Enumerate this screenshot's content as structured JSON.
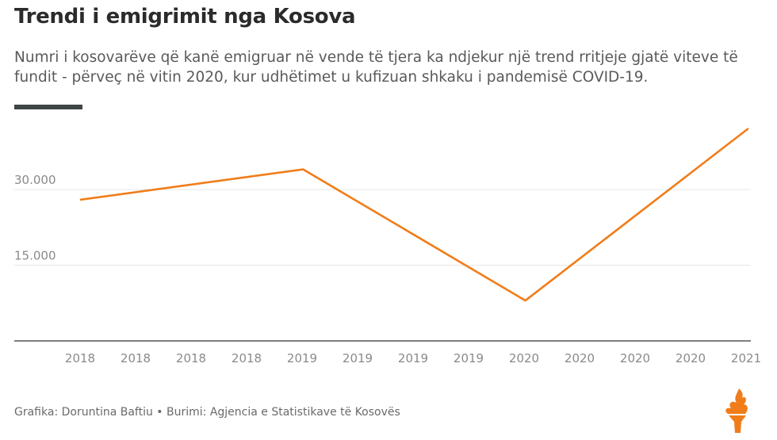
{
  "header": {
    "title": "Trendi i emigrimit nga Kosova",
    "subtitle": "Numri i kosovarëve që kanë emigruar në vende të tjera ka ndjekur një trend rritjeje gjatë viteve të fundit - përveç në vitin 2020, kur udhëtimet u kufizuan shkaku i pandemisë COVID-19."
  },
  "footer": {
    "credit": "Grafika: Doruntina Baftiu • Burimi: Agjencia e Statistikave të Kosovës"
  },
  "colors": {
    "line": "#f07d1a",
    "grid": "#e6e6e6",
    "axis": "#333333",
    "logo": "#f07d1a"
  },
  "logo": {
    "icon": "torch-logo-icon"
  },
  "chart_data": {
    "type": "line",
    "title": "Trendi i emigrimit nga Kosova",
    "x": [
      "2018",
      "2019",
      "2020",
      "2021"
    ],
    "values": [
      28000,
      34000,
      8000,
      42000
    ],
    "x_tick_labels": [
      "2018",
      "2018",
      "2018",
      "2018",
      "2019",
      "2019",
      "2019",
      "2019",
      "2020",
      "2020",
      "2020",
      "2020",
      "2021"
    ],
    "y_ticks": [
      15000,
      30000
    ],
    "y_tick_labels": [
      "15.000",
      "30.000"
    ],
    "ylim": [
      0,
      44000
    ],
    "grid": true,
    "legend": "none"
  }
}
